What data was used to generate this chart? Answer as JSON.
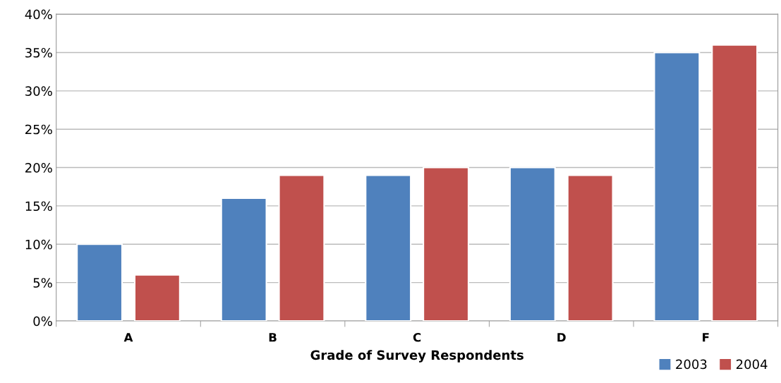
{
  "chart_data": {
    "type": "bar",
    "xlabel": "Grade of Survey Respondents",
    "categories": [
      "A",
      "B",
      "C",
      "D",
      "F"
    ],
    "series": [
      {
        "name": "2003",
        "color": "#4f81bd",
        "values": [
          10,
          16,
          19,
          20,
          35
        ]
      },
      {
        "name": "2004",
        "color": "#c0504d",
        "values": [
          6,
          19,
          20,
          19,
          36
        ]
      }
    ],
    "ylim": [
      0,
      40
    ],
    "yticks": [
      {
        "value": 0,
        "label": "0%"
      },
      {
        "value": 5,
        "label": "5%"
      },
      {
        "value": 10,
        "label": "10%"
      },
      {
        "value": 15,
        "label": "15%"
      },
      {
        "value": 20,
        "label": "20%"
      },
      {
        "value": 25,
        "label": "25%"
      },
      {
        "value": 30,
        "label": "30%"
      },
      {
        "value": 35,
        "label": "35%"
      },
      {
        "value": 40,
        "label": "40%"
      }
    ],
    "grid": "y",
    "legend": "bottom right"
  }
}
